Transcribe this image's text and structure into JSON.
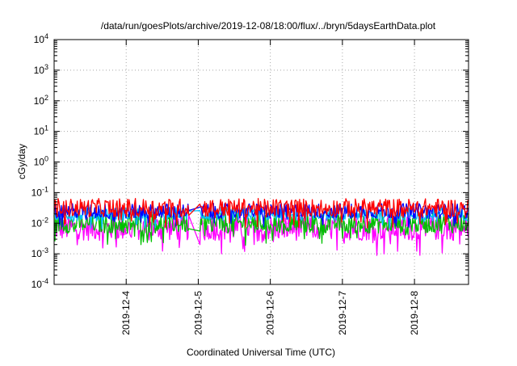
{
  "chart_data": {
    "type": "line",
    "title": "/data/run/goesPlots/archive/2019-12-08/18:00/flux/../bryn/5daysEarthData.plot",
    "xlabel": "Coordinated Universal Time (UTC)",
    "ylabel": "cGy/day",
    "yscale": "log",
    "ylim": [
      0.0001,
      10000
    ],
    "y_ticks": [
      {
        "exp": "-4",
        "value": 0.0001
      },
      {
        "exp": "-3",
        "value": 0.001
      },
      {
        "exp": "-2",
        "value": 0.01
      },
      {
        "exp": "-1",
        "value": 0.1
      },
      {
        "exp": "0",
        "value": 1
      },
      {
        "exp": "1",
        "value": 10
      },
      {
        "exp": "2",
        "value": 100
      },
      {
        "exp": "3",
        "value": 1000
      },
      {
        "exp": "4",
        "value": 10000
      }
    ],
    "y_tick_base": "10",
    "xlim": [
      "2019-12-03T00:00",
      "2019-12-08T18:00"
    ],
    "x_ticks": [
      "2019-12-4",
      "2019-12-5",
      "2019-12-6",
      "2019-12-7",
      "2019-12-8"
    ],
    "x_tick_dates": [
      "2019-12-04T00:00",
      "2019-12-05T00:00",
      "2019-12-06T00:00",
      "2019-12-07T00:00",
      "2019-12-08T00:00"
    ],
    "grid": true,
    "legend": "none",
    "gap": [
      "2019-12-04T21:00",
      "2019-12-05T00:30"
    ],
    "series": [
      {
        "color": "#ff0000",
        "level": 0.032,
        "spread": 0.55
      },
      {
        "color": "#0000ff",
        "level": 0.025,
        "spread": 0.45
      },
      {
        "color": "#00bfff",
        "level": 0.02,
        "spread": 0.4
      },
      {
        "color": "#00c000",
        "level": 0.01,
        "spread": 0.6
      },
      {
        "color": "#ff00ff",
        "level": 0.007,
        "spread": 0.75
      }
    ]
  }
}
